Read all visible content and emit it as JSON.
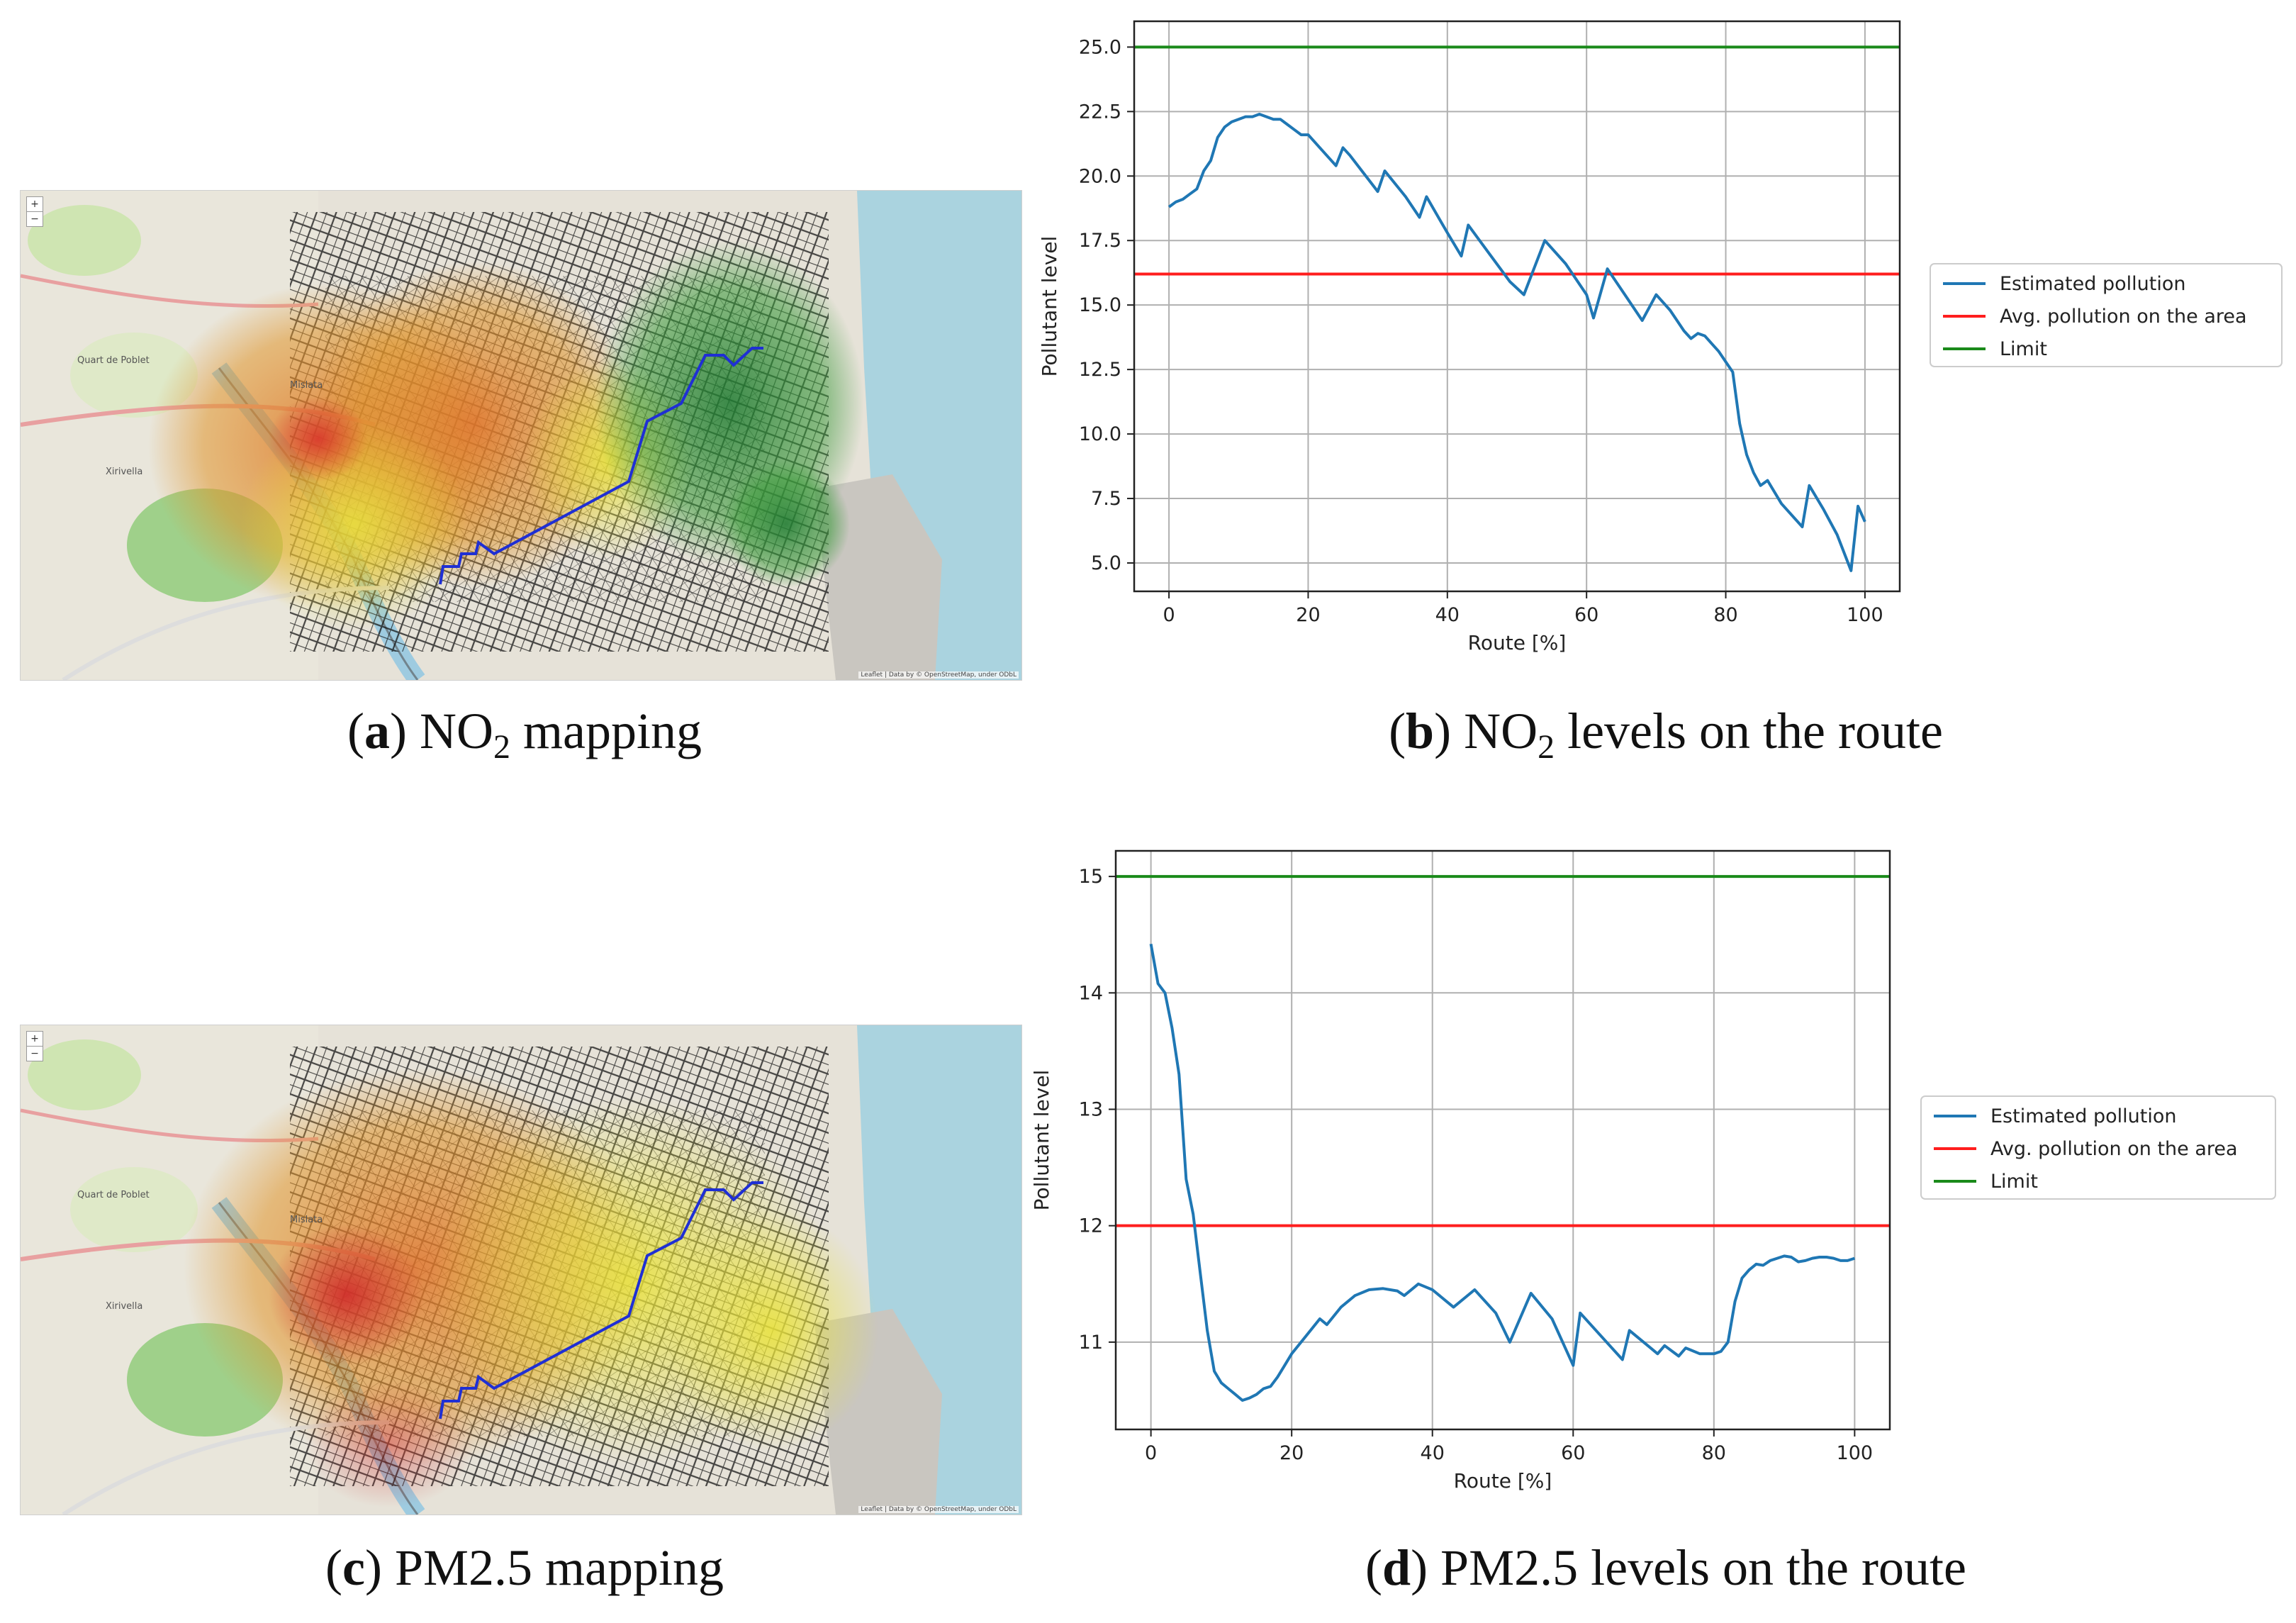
{
  "panels": {
    "a": {
      "letter": "a",
      "pollutant_main": "NO",
      "pollutant_sub": "2",
      "suffix": " mapping"
    },
    "b": {
      "letter": "b",
      "pollutant_main": "NO",
      "pollutant_sub": "2",
      "suffix": " levels on the route"
    },
    "c": {
      "letter": "c",
      "text": "PM2.5 mapping"
    },
    "d": {
      "letter": "d",
      "text": "PM2.5 levels on the route"
    }
  },
  "map": {
    "zoom_in": "+",
    "zoom_out": "−",
    "attribution": "Leaflet | Data by © OpenStreetMap, under ODbL",
    "labels": [
      "Quart de Poblet",
      "Mislata",
      "Xirivella"
    ],
    "route_color": "#1f2fd4",
    "heat_red": "#d33a2f",
    "heat_orange": "#e07b2a",
    "heat_yellow": "#e6de3a",
    "heat_green": "#2e8b3a",
    "sea_color": "#aad3df"
  },
  "chart_data": [
    {
      "id": "no2",
      "type": "line",
      "title": "",
      "xlabel": "Route [%]",
      "ylabel": "Pollutant level",
      "xlim": [
        -5,
        105
      ],
      "ylim": [
        3.9,
        26.0
      ],
      "xticks": [
        0,
        20,
        40,
        60,
        80,
        100
      ],
      "xtick_labels": [
        "0",
        "20",
        "40",
        "60",
        "80",
        "100"
      ],
      "yticks": [
        5.0,
        7.5,
        10.0,
        12.5,
        15.0,
        17.5,
        20.0,
        22.5,
        25.0
      ],
      "ytick_labels": [
        "5.0",
        "7.5",
        "10.0",
        "12.5",
        "15.0",
        "17.5",
        "20.0",
        "22.5",
        "25.0"
      ],
      "grid": true,
      "legend_position": "right-outside",
      "legend": [
        "Estimated pollution",
        "Avg. pollution on the area",
        "Limit"
      ],
      "series": [
        {
          "name": "Estimated pollution",
          "color": "#1f77b4",
          "x": [
            0,
            1,
            2,
            3,
            4,
            5,
            6,
            7,
            8,
            9,
            10,
            11,
            12,
            13,
            14,
            15,
            16,
            17,
            18,
            19,
            20,
            22,
            24,
            25,
            26,
            28,
            30,
            31,
            34,
            36,
            37,
            40,
            42,
            43,
            46,
            49,
            51,
            54,
            57,
            60,
            61,
            63,
            66,
            68,
            70,
            72,
            74,
            75,
            76,
            77,
            78,
            79,
            80,
            81,
            82,
            83,
            84,
            85,
            86,
            88,
            91,
            92,
            94,
            96,
            98,
            99,
            100
          ],
          "values": [
            18.8,
            19.0,
            19.1,
            19.3,
            19.5,
            20.2,
            20.6,
            21.5,
            21.9,
            22.1,
            22.2,
            22.3,
            22.3,
            22.4,
            22.3,
            22.2,
            22.2,
            22.0,
            21.8,
            21.6,
            21.6,
            21.0,
            20.4,
            21.1,
            20.8,
            20.1,
            19.4,
            20.2,
            19.2,
            18.4,
            19.2,
            17.8,
            16.9,
            18.1,
            17.0,
            15.9,
            15.4,
            17.5,
            16.6,
            15.4,
            14.5,
            16.4,
            15.2,
            14.4,
            15.4,
            14.8,
            14.0,
            13.7,
            13.9,
            13.8,
            13.5,
            13.2,
            12.8,
            12.4,
            10.4,
            9.2,
            8.5,
            8.0,
            8.2,
            7.3,
            6.4,
            8.0,
            7.1,
            6.1,
            4.7,
            7.2,
            6.6
          ]
        },
        {
          "name": "Avg. pollution on the area",
          "color": "#ff1e1e",
          "constant": 16.2
        },
        {
          "name": "Limit",
          "color": "#1a8a1a",
          "constant": 25.0
        }
      ]
    },
    {
      "id": "pm25",
      "type": "line",
      "title": "",
      "xlabel": "Route [%]",
      "ylabel": "Pollutant level",
      "xlim": [
        -5,
        105
      ],
      "ylim": [
        10.25,
        15.22
      ],
      "xticks": [
        0,
        20,
        40,
        60,
        80,
        100
      ],
      "xtick_labels": [
        "0",
        "20",
        "40",
        "60",
        "80",
        "100"
      ],
      "yticks": [
        11,
        12,
        13,
        14,
        15
      ],
      "ytick_labels": [
        "11",
        "12",
        "13",
        "14",
        "15"
      ],
      "grid": true,
      "legend_position": "right-outside",
      "legend": [
        "Estimated pollution",
        "Avg. pollution on the area",
        "Limit"
      ],
      "series": [
        {
          "name": "Estimated pollution",
          "color": "#1f77b4",
          "x": [
            0,
            1,
            2,
            3,
            4,
            5,
            6,
            7,
            8,
            9,
            10,
            11,
            12,
            13,
            14,
            15,
            16,
            17,
            18,
            19,
            20,
            22,
            24,
            25,
            27,
            29,
            31,
            33,
            34,
            35,
            36,
            38,
            40,
            42,
            43,
            46,
            49,
            51,
            54,
            57,
            60,
            61,
            64,
            67,
            68,
            71,
            72,
            73,
            75,
            76,
            78,
            79,
            80,
            81,
            82,
            83,
            84,
            85,
            86,
            87,
            88,
            89,
            90,
            91,
            92,
            93,
            94,
            95,
            96,
            97,
            98,
            99,
            100
          ],
          "values": [
            14.42,
            14.08,
            14.0,
            13.7,
            13.3,
            12.4,
            12.1,
            11.6,
            11.1,
            10.75,
            10.65,
            10.6,
            10.55,
            10.5,
            10.52,
            10.55,
            10.6,
            10.62,
            10.7,
            10.8,
            10.9,
            11.05,
            11.2,
            11.15,
            11.3,
            11.4,
            11.45,
            11.46,
            11.45,
            11.44,
            11.4,
            11.5,
            11.45,
            11.35,
            11.3,
            11.45,
            11.25,
            11.0,
            11.42,
            11.2,
            10.8,
            11.25,
            11.05,
            10.85,
            11.1,
            10.95,
            10.9,
            10.97,
            10.88,
            10.95,
            10.9,
            10.9,
            10.9,
            10.92,
            11.0,
            11.35,
            11.55,
            11.62,
            11.67,
            11.66,
            11.7,
            11.72,
            11.74,
            11.73,
            11.69,
            11.7,
            11.72,
            11.73,
            11.73,
            11.72,
            11.7,
            11.7,
            11.72
          ]
        },
        {
          "name": "Avg. pollution on the area",
          "color": "#ff1e1e",
          "constant": 12.0
        },
        {
          "name": "Limit",
          "color": "#1a8a1a",
          "constant": 15.0
        }
      ]
    }
  ]
}
